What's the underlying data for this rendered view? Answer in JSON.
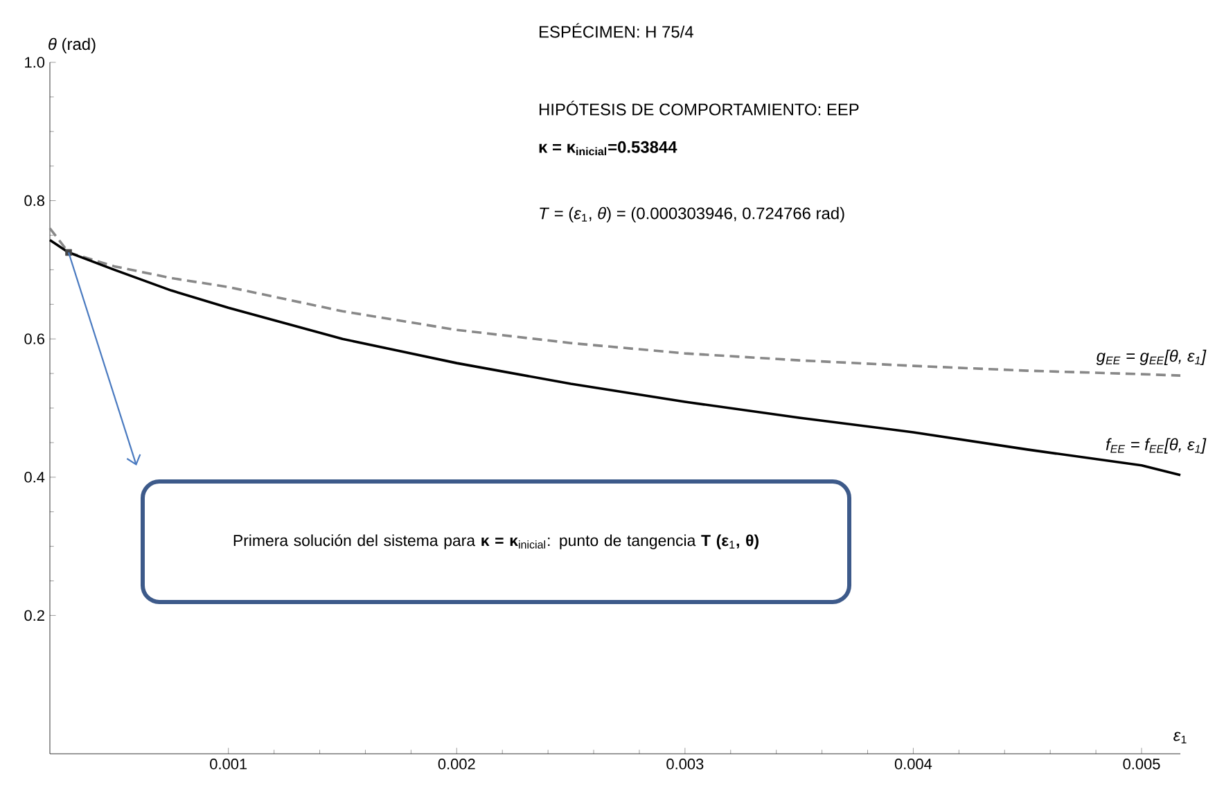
{
  "chart_data": {
    "type": "line",
    "xlabel": "*ε*$_{1}$",
    "ylabel": "*θ* (rad)",
    "xlim": [
      0.000218,
      0.00517
    ],
    "ylim": [
      0,
      1.0
    ],
    "xticks": [
      0.001,
      0.002,
      0.003,
      0.004,
      0.005
    ],
    "yticks": [
      0.2,
      0.4,
      0.6,
      0.8,
      {
        "value": 1.0,
        "label": "1.0"
      }
    ],
    "grid": false,
    "series": [
      {
        "name": "*g*$_{EE}$ = *g*$_{EE}$[*θ*, *ε*$_{1}$]",
        "color": "#888888",
        "line_style": "dashed",
        "marker": "none",
        "x": [
          0.000218,
          0.0003,
          0.0005,
          0.00075,
          0.001,
          0.0015,
          0.002,
          0.0025,
          0.003,
          0.0035,
          0.004,
          0.0045,
          0.005,
          0.00517
        ],
        "values": [
          0.76,
          0.725,
          0.705,
          0.688,
          0.675,
          0.64,
          0.613,
          0.594,
          0.579,
          0.569,
          0.561,
          0.554,
          0.549,
          0.547
        ]
      },
      {
        "name": "*f*$_{EE}$ = *f*$_{EE}$[*θ*, *ε*$_{1}$]",
        "color": "#000000",
        "line_style": "solid",
        "marker": "none",
        "x": [
          0.000218,
          0.0003,
          0.0005,
          0.00075,
          0.001,
          0.0015,
          0.002,
          0.0025,
          0.003,
          0.0035,
          0.004,
          0.0045,
          0.005,
          0.00517
        ],
        "values": [
          0.743,
          0.725,
          0.7,
          0.67,
          0.645,
          0.6,
          0.565,
          0.535,
          0.509,
          0.486,
          0.465,
          0.44,
          0.417,
          0.403
        ]
      },
      {
        "type": "scatter",
        "color": "#444444",
        "marker": "square",
        "x": [
          0.0003
        ],
        "values": [
          0.725
        ]
      }
    ],
    "annotations": [
      "ESPÉCIMEN: H 75/4",
      "HIPÓTESIS DE COMPORTAMIENTO: EEP",
      "κ = κ$_{inicial}$=0.53844",
      "*T* = (*ε*$_{1}$, *θ*) = (0.000303946, 0.724766 rad)",
      "Primera solución del sistema para **κ = κ**$_{inicial}$: punto de tangencia **T (ε**$_{1}$**, θ)**"
    ]
  }
}
